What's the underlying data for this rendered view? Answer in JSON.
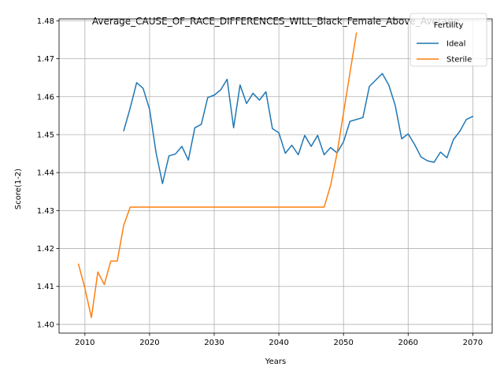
{
  "chart_data": {
    "type": "line",
    "title": "Average_CAUSE_OF_RACE_DIFFERENCES_WILL_Black_Female_Above_Average",
    "xlabel": "Years",
    "ylabel": "Score(1-2)",
    "xlim": [
      2006,
      2073
    ],
    "ylim": [
      1.3977,
      1.4805
    ],
    "x_ticks": [
      2010,
      2020,
      2030,
      2040,
      2050,
      2060,
      2070
    ],
    "y_ticks": [
      1.4,
      1.41,
      1.42,
      1.43,
      1.44,
      1.45,
      1.46,
      1.47,
      1.48
    ],
    "y_tick_labels": [
      "1.40",
      "1.41",
      "1.42",
      "1.43",
      "1.44",
      "1.45",
      "1.46",
      "1.47",
      "1.48"
    ],
    "grid": true,
    "legend": {
      "title": "Fertility",
      "placement": "top-right"
    },
    "series": [
      {
        "name": "Ideal",
        "color": "#1f77b4",
        "x": [
          2016,
          2017,
          2018,
          2019,
          2020,
          2021,
          2022,
          2023,
          2024,
          2025,
          2026,
          2027,
          2028,
          2029,
          2030,
          2031,
          2032,
          2033,
          2034,
          2035,
          2036,
          2037,
          2038,
          2039,
          2040,
          2041,
          2042,
          2043,
          2044,
          2045,
          2046,
          2047,
          2048,
          2049,
          2050,
          2051,
          2053,
          2054,
          2056,
          2057,
          2058,
          2059,
          2060,
          2061,
          2062,
          2063,
          2064,
          2065,
          2066,
          2067,
          2068,
          2069,
          2070
        ],
        "y": [
          1.451,
          1.457,
          1.4637,
          1.4622,
          1.4567,
          1.4453,
          1.4371,
          1.4444,
          1.4449,
          1.4469,
          1.4433,
          1.4518,
          1.4527,
          1.4598,
          1.4604,
          1.4618,
          1.4646,
          1.4518,
          1.4631,
          1.4582,
          1.4609,
          1.4591,
          1.4613,
          1.4516,
          1.4505,
          1.4451,
          1.4472,
          1.4447,
          1.4498,
          1.4469,
          1.4498,
          1.4447,
          1.4466,
          1.4452,
          1.4481,
          1.4535,
          1.4545,
          1.4627,
          1.4661,
          1.4631,
          1.4577,
          1.4489,
          1.4502,
          1.4474,
          1.4441,
          1.4431,
          1.4427,
          1.4454,
          1.4439,
          1.4487,
          1.4509,
          1.454,
          1.4548
        ]
      },
      {
        "name": "Sterile",
        "color": "#ff7f0e",
        "x": [
          2009,
          2010,
          2011,
          2012,
          2013,
          2014,
          2015,
          2016,
          2017,
          2018,
          2019,
          2020,
          2021,
          2022,
          2023,
          2024,
          2025,
          2026,
          2027,
          2028,
          2029,
          2030,
          2031,
          2032,
          2033,
          2034,
          2035,
          2036,
          2037,
          2038,
          2039,
          2040,
          2041,
          2042,
          2043,
          2044,
          2045,
          2046,
          2047,
          2048,
          2049,
          2050,
          2051,
          2052
        ],
        "y": [
          1.4159,
          1.4095,
          1.4018,
          1.4138,
          1.4105,
          1.4167,
          1.4167,
          1.4261,
          1.4309,
          1.4309,
          1.4309,
          1.4309,
          1.4309,
          1.4309,
          1.4309,
          1.4309,
          1.4309,
          1.4309,
          1.4309,
          1.4309,
          1.4309,
          1.4309,
          1.4309,
          1.4309,
          1.4309,
          1.4309,
          1.4309,
          1.4309,
          1.4309,
          1.4309,
          1.4309,
          1.4309,
          1.4309,
          1.4309,
          1.4309,
          1.4309,
          1.4309,
          1.4309,
          1.4309,
          1.4366,
          1.4451,
          1.4557,
          1.4663,
          1.4768
        ]
      }
    ]
  }
}
